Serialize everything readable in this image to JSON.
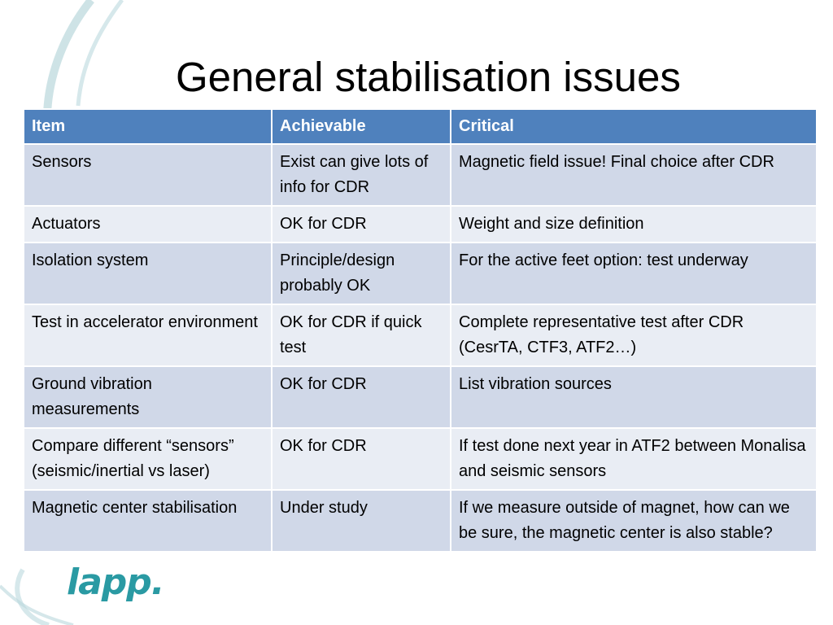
{
  "slide": {
    "title": "General stabilisation issues",
    "logo_text": "lapp.",
    "colors": {
      "header": "#4f81bd",
      "row_odd": "#d0d8e8",
      "row_even": "#e9edf4",
      "logo_teal": "#2a9aa3"
    }
  },
  "table": {
    "headers": [
      "Item",
      "Achievable",
      "Critical"
    ],
    "rows": [
      [
        "Sensors",
        "Exist can give lots of info for CDR",
        "Magnetic field issue! Final choice after CDR"
      ],
      [
        "Actuators",
        "OK for CDR",
        "Weight and size definition"
      ],
      [
        "Isolation system",
        "Principle/design probably OK",
        "For the active feet option: test underway"
      ],
      [
        "Test in accelerator environment",
        "OK for CDR if quick test",
        "Complete representative test after CDR (CesrTA, CTF3, ATF2…)"
      ],
      [
        "Ground vibration measurements",
        "OK for CDR",
        "List vibration sources"
      ],
      [
        "Compare different “sensors” (seismic/inertial vs laser)",
        "OK for CDR",
        "If test done next year in ATF2 between Monalisa and seismic sensors"
      ],
      [
        "Magnetic center stabilisation",
        "Under study",
        "If we measure outside of magnet, how can we be sure, the magnetic center is also stable?"
      ]
    ]
  }
}
